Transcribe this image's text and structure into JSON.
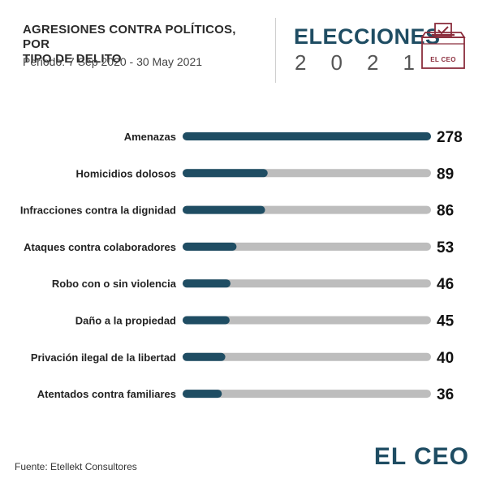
{
  "header": {
    "title_line1": "AGRESIONES CONTRA POLÍTICOS, POR",
    "title_line2": "TIPO DE DELITO",
    "period": "Periodo: 7 Sep 2020 - 30 May 2021"
  },
  "logo": {
    "title": "ELECCIONES",
    "year_digits": [
      "2",
      "0",
      "2",
      "1"
    ],
    "ballot_label": "EL CEO",
    "ballot_icon": "ballot-box-check-icon"
  },
  "colors": {
    "value_bar": "#1f4d63",
    "track_bar": "#bdbdbd",
    "logo_maroon": "#8b2d3c"
  },
  "chart_data": {
    "type": "bar",
    "orientation": "horizontal",
    "title": "AGRESIONES CONTRA POLÍTICOS, POR TIPO DE DELITO",
    "xlim": [
      0,
      278
    ],
    "categories": [
      "Amenazas",
      "Homicidios dolosos",
      "Infracciones contra la dignidad",
      "Ataques contra colaboradores",
      "Robo con o sin violencia",
      "Daño a la propiedad",
      "Privación ilegal de la libertad",
      "Atentados contra familiares"
    ],
    "values": [
      278,
      89,
      86,
      53,
      46,
      45,
      40,
      36
    ],
    "value_labels": [
      "278",
      "89",
      "86",
      "53",
      "46",
      "45",
      "40",
      "36"
    ]
  },
  "footer": {
    "source": "Fuente: Etellekt Consultores",
    "brand": "EL CEO"
  }
}
